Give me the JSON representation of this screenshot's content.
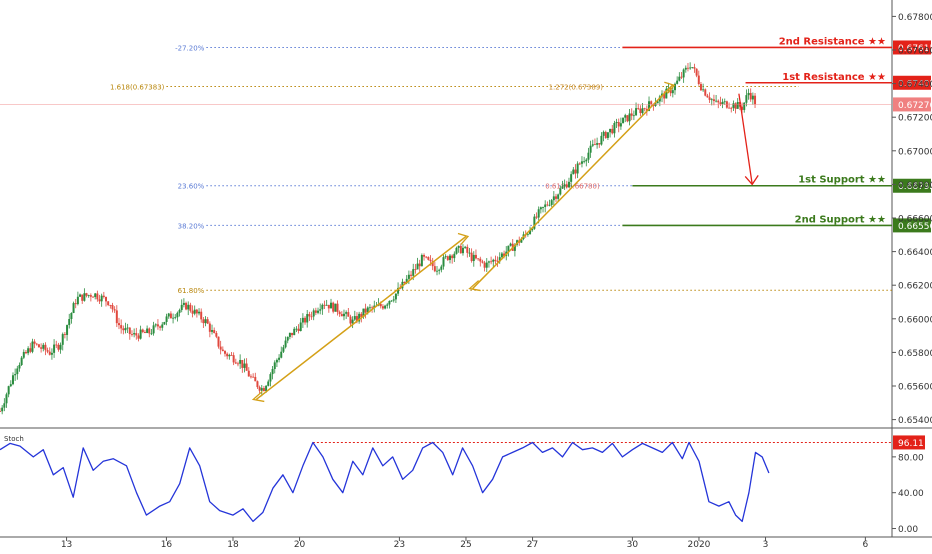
{
  "chart_data": {
    "type": "candlestick",
    "symbol": "AUDUSD",
    "price_axis": {
      "ticks": [
        "0.67800",
        "0.67600",
        "0.67400",
        "0.67200",
        "0.67000",
        "0.66800",
        "0.66600",
        "0.66400",
        "0.66200",
        "0.66000",
        "0.65800",
        "0.65600",
        "0.65400"
      ],
      "range": [
        0.6535,
        0.6785
      ]
    },
    "date_axis": {
      "ticks": [
        {
          "label": "13",
          "day": 13
        },
        {
          "label": "16",
          "day": 16
        },
        {
          "label": "18",
          "day": 18
        },
        {
          "label": "20",
          "day": 20
        },
        {
          "label": "23",
          "day": 23
        },
        {
          "label": "25",
          "day": 25
        },
        {
          "label": "27",
          "day": 27
        },
        {
          "label": "30",
          "day": 30
        },
        {
          "label": "2020",
          "day": 32
        },
        {
          "label": "3",
          "day": 34
        },
        {
          "label": "6",
          "day": 37
        }
      ],
      "range": [
        11,
        37.8
      ]
    },
    "levels": [
      {
        "name": "2nd Resistance ★★",
        "value": 0.67615,
        "price_label": "0.67615",
        "color": "#e32219",
        "from_day": 29.7
      },
      {
        "name": "1st Resistance ★★",
        "value": 0.67405,
        "price_label": "0.67405",
        "color": "#e32219",
        "from_day": 33.4
      },
      {
        "name": "1st Support ★★",
        "value": 0.66792,
        "price_label": "0.66792",
        "color": "#3b7a1c",
        "from_day": 30.0
      },
      {
        "name": "2nd Support ★★",
        "value": 0.66556,
        "price_label": "0.66556",
        "color": "#3b7a1c",
        "from_day": 29.7
      }
    ],
    "current_price": {
      "value": 0.67276,
      "label": "0.67276",
      "color": "#f08080"
    },
    "fibonacci": [
      {
        "label": "-27.20%",
        "value": 0.67615,
        "color": "#5b7bd5",
        "from_day": 17.2,
        "to_day": 29.7
      },
      {
        "label": "1.618(0.67383)",
        "value": 0.67383,
        "color": "#b8860b",
        "from_day": 16.0,
        "to_day": 35.0
      },
      {
        "label": "1.272(0.67389)",
        "value": 0.67383,
        "color": "#c88a2a",
        "from_day": 28.3,
        "to_day": 28.3
      },
      {
        "label": "23.60%",
        "value": 0.66792,
        "color": "#5b7bd5",
        "from_day": 17.2,
        "to_day": 30.0
      },
      {
        "label": "0.618(0.66780)",
        "value": 0.66792,
        "color": "#e06a6a",
        "from_day": 28.2,
        "to_day": 28.2
      },
      {
        "label": "38.20%",
        "value": 0.66556,
        "color": "#5b7bd5",
        "from_day": 17.2,
        "to_day": 29.7
      },
      {
        "label": "61.80%",
        "value": 0.6617,
        "color": "#b8860b",
        "from_day": 17.2,
        "to_day": 37.8
      }
    ],
    "trendlines": [
      {
        "from": {
          "day": 18.7,
          "price": 0.6552
        },
        "to": {
          "day": 25.0,
          "price": 0.6649
        },
        "color": "#d4a017"
      },
      {
        "from": {
          "day": 25.2,
          "price": 0.6618
        },
        "to": {
          "day": 31.2,
          "price": 0.6739
        },
        "color": "#d4a017"
      }
    ],
    "forecast_arrow": {
      "from": {
        "day": 33.2,
        "price": 0.6734
      },
      "to": {
        "day": 33.6,
        "price": 0.668
      },
      "color": "#e32219"
    },
    "price_keypoints": [
      [
        11.0,
        0.6545
      ],
      [
        11.5,
        0.6572
      ],
      [
        12.0,
        0.6585
      ],
      [
        12.5,
        0.658
      ],
      [
        12.8,
        0.6585
      ],
      [
        13.3,
        0.6612
      ],
      [
        13.8,
        0.6615
      ],
      [
        14.3,
        0.661
      ],
      [
        14.6,
        0.6595
      ],
      [
        15.0,
        0.659
      ],
      [
        15.5,
        0.6592
      ],
      [
        16.0,
        0.66
      ],
      [
        16.6,
        0.6608
      ],
      [
        17.2,
        0.6598
      ],
      [
        17.7,
        0.658
      ],
      [
        18.2,
        0.6575
      ],
      [
        18.6,
        0.6563
      ],
      [
        18.9,
        0.6558
      ],
      [
        19.3,
        0.6575
      ],
      [
        19.7,
        0.659
      ],
      [
        20.2,
        0.66
      ],
      [
        20.7,
        0.661
      ],
      [
        21.2,
        0.6605
      ],
      [
        21.6,
        0.6598
      ],
      [
        22.0,
        0.6605
      ],
      [
        22.5,
        0.6608
      ],
      [
        22.9,
        0.6615
      ],
      [
        23.3,
        0.6625
      ],
      [
        23.7,
        0.6636
      ],
      [
        24.1,
        0.663
      ],
      [
        24.5,
        0.6638
      ],
      [
        24.9,
        0.6642
      ],
      [
        25.2,
        0.6636
      ],
      [
        25.6,
        0.6632
      ],
      [
        26.0,
        0.6637
      ],
      [
        26.4,
        0.6643
      ],
      [
        26.8,
        0.665
      ],
      [
        27.2,
        0.6663
      ],
      [
        27.6,
        0.6672
      ],
      [
        28.0,
        0.668
      ],
      [
        28.4,
        0.6692
      ],
      [
        28.8,
        0.6702
      ],
      [
        29.2,
        0.671
      ],
      [
        29.6,
        0.6716
      ],
      [
        30.0,
        0.6722
      ],
      [
        30.4,
        0.6726
      ],
      [
        30.8,
        0.6731
      ],
      [
        31.2,
        0.6737
      ],
      [
        31.5,
        0.6745
      ],
      [
        31.75,
        0.6752
      ],
      [
        32.1,
        0.6737
      ],
      [
        32.5,
        0.6728
      ],
      [
        32.9,
        0.6728
      ],
      [
        33.3,
        0.6726
      ],
      [
        33.5,
        0.6735
      ],
      [
        33.75,
        0.6727
      ]
    ],
    "oscillator": {
      "name": "Stoch",
      "ticks": [
        "80.00",
        "40.00",
        "0.00"
      ],
      "range": [
        -5,
        110
      ],
      "marker": {
        "value": 96.11,
        "label": "96.11",
        "color": "#e32219"
      },
      "line_color": "#2535d9",
      "keypoints": [
        [
          11.0,
          88
        ],
        [
          11.3,
          95
        ],
        [
          11.6,
          92
        ],
        [
          12.0,
          80
        ],
        [
          12.3,
          88
        ],
        [
          12.6,
          60
        ],
        [
          12.9,
          68
        ],
        [
          13.2,
          35
        ],
        [
          13.5,
          90
        ],
        [
          13.8,
          65
        ],
        [
          14.1,
          75
        ],
        [
          14.4,
          78
        ],
        [
          14.8,
          70
        ],
        [
          15.1,
          40
        ],
        [
          15.4,
          15
        ],
        [
          15.8,
          25
        ],
        [
          16.1,
          30
        ],
        [
          16.4,
          50
        ],
        [
          16.7,
          90
        ],
        [
          17.0,
          70
        ],
        [
          17.3,
          30
        ],
        [
          17.6,
          20
        ],
        [
          18.0,
          15
        ],
        [
          18.3,
          22
        ],
        [
          18.6,
          8
        ],
        [
          18.9,
          18
        ],
        [
          19.2,
          45
        ],
        [
          19.5,
          60
        ],
        [
          19.8,
          40
        ],
        [
          20.1,
          70
        ],
        [
          20.4,
          96
        ],
        [
          20.7,
          80
        ],
        [
          21.0,
          55
        ],
        [
          21.3,
          40
        ],
        [
          21.6,
          75
        ],
        [
          21.9,
          60
        ],
        [
          22.2,
          90
        ],
        [
          22.5,
          70
        ],
        [
          22.8,
          80
        ],
        [
          23.1,
          55
        ],
        [
          23.4,
          65
        ],
        [
          23.7,
          90
        ],
        [
          24.0,
          96
        ],
        [
          24.3,
          85
        ],
        [
          24.6,
          60
        ],
        [
          24.9,
          90
        ],
        [
          25.2,
          70
        ],
        [
          25.5,
          40
        ],
        [
          25.8,
          55
        ],
        [
          26.1,
          80
        ],
        [
          26.4,
          85
        ],
        [
          26.7,
          90
        ],
        [
          27.0,
          96
        ],
        [
          27.3,
          85
        ],
        [
          27.6,
          90
        ],
        [
          27.9,
          80
        ],
        [
          28.2,
          96
        ],
        [
          28.5,
          88
        ],
        [
          28.8,
          90
        ],
        [
          29.1,
          85
        ],
        [
          29.4,
          95
        ],
        [
          29.7,
          80
        ],
        [
          30.0,
          88
        ],
        [
          30.3,
          95
        ],
        [
          30.6,
          90
        ],
        [
          30.9,
          85
        ],
        [
          31.2,
          96
        ],
        [
          31.5,
          78
        ],
        [
          31.7,
          96
        ],
        [
          32.0,
          75
        ],
        [
          32.3,
          30
        ],
        [
          32.6,
          25
        ],
        [
          32.9,
          30
        ],
        [
          33.1,
          15
        ],
        [
          33.3,
          8
        ],
        [
          33.5,
          40
        ],
        [
          33.7,
          85
        ],
        [
          33.9,
          80
        ],
        [
          34.1,
          62
        ]
      ]
    }
  }
}
